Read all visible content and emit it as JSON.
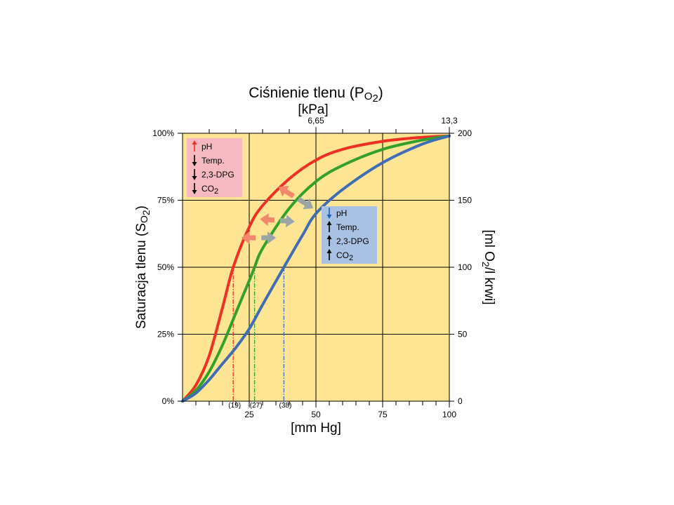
{
  "chart_data": {
    "type": "line",
    "title": "Ciśnienie tlenu (P",
    "title_sub": "O",
    "title_sub2": "2",
    "title_end": ")",
    "top_unit": "[kPa]",
    "top_ticks": [
      {
        "x": 50,
        "label": "6,65"
      },
      {
        "x": 100,
        "label": "13,3"
      }
    ],
    "xlabel": "[mm Hg]",
    "xlim": [
      0,
      100
    ],
    "x_ticks": [
      {
        "x": 25,
        "label": "25"
      },
      {
        "x": 50,
        "label": "50"
      },
      {
        "x": 75,
        "label": "75"
      },
      {
        "x": 100,
        "label": "100"
      }
    ],
    "ylabel_left": "Saturacja tlenu (S",
    "ylabel_left_sub": "O",
    "ylabel_left_sub2": "2",
    "ylabel_left_end": ")",
    "ylim": [
      0,
      100
    ],
    "y_ticks_left": [
      {
        "y": 0,
        "label": "0%"
      },
      {
        "y": 25,
        "label": "25%"
      },
      {
        "y": 50,
        "label": "50%"
      },
      {
        "y": 75,
        "label": "75%"
      },
      {
        "y": 100,
        "label": "100%"
      }
    ],
    "ylabel_right": "[ml O",
    "ylabel_right_sub": "2",
    "ylabel_right_end": "/l krwi]",
    "y_ticks_right": [
      {
        "y": 0,
        "label": "0"
      },
      {
        "y": 25,
        "label": "50"
      },
      {
        "y": 50,
        "label": "100"
      },
      {
        "y": 75,
        "label": "150"
      },
      {
        "y": 100,
        "label": "200"
      }
    ],
    "grid": true,
    "series": [
      {
        "color": "#ee3124",
        "p50": 19,
        "p50_label": "(19)",
        "x": [
          0,
          5,
          10,
          15,
          19,
          25,
          30,
          40,
          50,
          60,
          75,
          90,
          100
        ],
        "y": [
          0,
          6,
          17,
          35,
          50,
          65,
          73,
          83,
          90,
          94,
          97,
          98.5,
          99
        ]
      },
      {
        "color": "#33a02c",
        "p50": 27,
        "p50_label": "(27)",
        "x": [
          0,
          5,
          10,
          15,
          20,
          25,
          27,
          30,
          40,
          50,
          60,
          75,
          90,
          100
        ],
        "y": [
          0,
          4,
          11,
          21,
          33,
          45,
          50,
          57,
          72,
          82,
          88,
          94,
          97.5,
          99
        ]
      },
      {
        "color": "#3e6db5",
        "p50": 38,
        "p50_label": "(38)",
        "x": [
          0,
          5,
          10,
          15,
          20,
          25,
          30,
          38,
          45,
          50,
          60,
          75,
          90,
          100
        ],
        "y": [
          0,
          3,
          8,
          14,
          20,
          27,
          36,
          50,
          62,
          70,
          79,
          89,
          96,
          99
        ]
      }
    ],
    "legend_left": {
      "items": [
        {
          "label": "pH",
          "arrow": "up",
          "color": "#ee3124"
        },
        {
          "label": "Temp.",
          "arrow": "down",
          "color": "#000000"
        },
        {
          "label": "2,3-DPG",
          "arrow": "down",
          "color": "#000000"
        },
        {
          "label": "CO",
          "sub": "2",
          "arrow": "down",
          "color": "#000000"
        }
      ],
      "background": "#f6b8c1"
    },
    "legend_right": {
      "items": [
        {
          "label": "pH",
          "arrow": "down",
          "color": "#1f5fbf"
        },
        {
          "label": "Temp.",
          "arrow": "up",
          "color": "#000000"
        },
        {
          "label": "2,3-DPG",
          "arrow": "up",
          "color": "#000000"
        },
        {
          "label": "CO",
          "sub": "2",
          "arrow": "up",
          "color": "#000000"
        }
      ],
      "background": "#a9c1e3"
    },
    "shift_arrows": [
      {
        "from_x": 35,
        "from_y": 61,
        "to_x": 22,
        "to_y": 61
      },
      {
        "from_x": 42,
        "from_y": 67,
        "to_x": 29,
        "to_y": 68
      },
      {
        "from_x": 49,
        "from_y": 72,
        "to_x": 36,
        "to_y": 80
      }
    ],
    "colors": {
      "plot_bg": "#fde594",
      "left_shift_arrow": "#f2886a",
      "right_shift_arrow": "#9aa5a8"
    }
  }
}
